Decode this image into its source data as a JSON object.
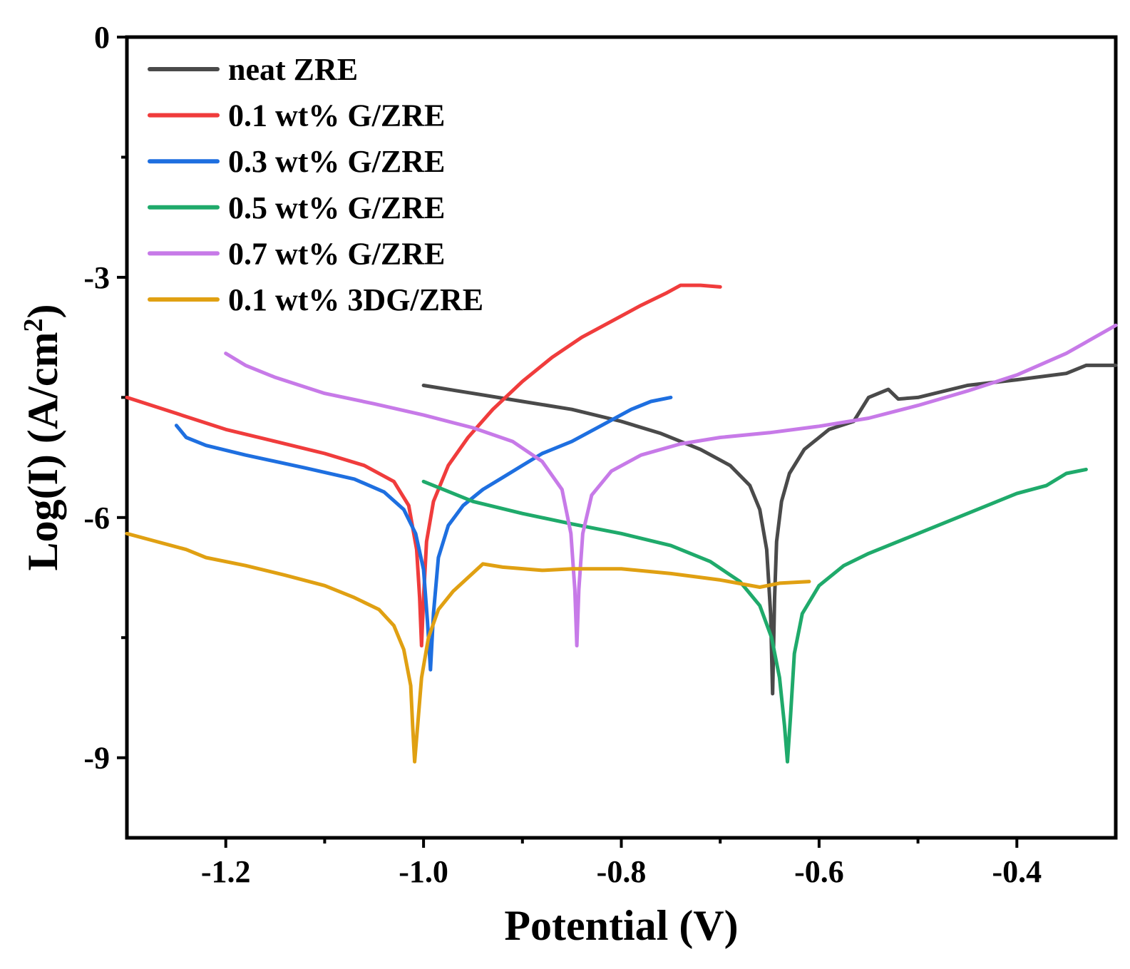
{
  "chart_data": {
    "type": "line",
    "title": "",
    "xlabel": "Potential (V)",
    "ylabel_main": "Log(I) (A/cm",
    "ylabel_sup": "2",
    "ylabel_close": ")",
    "xlim": [
      -1.3,
      -0.3
    ],
    "ylim": [
      -10,
      0
    ],
    "xticks": [
      {
        "value": -1.2,
        "label": "-1.2"
      },
      {
        "value": -1.0,
        "label": "-1.0"
      },
      {
        "value": -0.8,
        "label": "-0.8"
      },
      {
        "value": -0.6,
        "label": "-0.6"
      },
      {
        "value": -0.4,
        "label": "-0.4"
      }
    ],
    "xminor": [
      -1.1,
      -0.9,
      -0.7,
      -0.5,
      -0.3
    ],
    "yticks": [
      {
        "value": 0,
        "label": "0"
      },
      {
        "value": -3,
        "label": "-3"
      },
      {
        "value": -6,
        "label": "-6"
      },
      {
        "value": -9,
        "label": "-9"
      }
    ],
    "yminor": [
      -1.5,
      -4.5,
      -7.5
    ],
    "grid": false,
    "legend_position": "top-left",
    "series": [
      {
        "name": "neat ZRE",
        "color": "#4a4a4a",
        "points": [
          [
            -1.0,
            -4.35
          ],
          [
            -0.95,
            -4.45
          ],
          [
            -0.9,
            -4.55
          ],
          [
            -0.85,
            -4.65
          ],
          [
            -0.8,
            -4.8
          ],
          [
            -0.76,
            -4.95
          ],
          [
            -0.72,
            -5.15
          ],
          [
            -0.69,
            -5.35
          ],
          [
            -0.67,
            -5.6
          ],
          [
            -0.66,
            -5.9
          ],
          [
            -0.653,
            -6.4
          ],
          [
            -0.649,
            -7.2
          ],
          [
            -0.647,
            -8.2
          ],
          [
            -0.645,
            -7.0
          ],
          [
            -0.643,
            -6.3
          ],
          [
            -0.638,
            -5.8
          ],
          [
            -0.63,
            -5.45
          ],
          [
            -0.615,
            -5.15
          ],
          [
            -0.59,
            -4.9
          ],
          [
            -0.565,
            -4.8
          ],
          [
            -0.55,
            -4.5
          ],
          [
            -0.53,
            -4.4
          ],
          [
            -0.52,
            -4.52
          ],
          [
            -0.5,
            -4.5
          ],
          [
            -0.45,
            -4.35
          ],
          [
            -0.4,
            -4.28
          ],
          [
            -0.35,
            -4.2
          ],
          [
            -0.33,
            -4.1
          ],
          [
            -0.3,
            -4.1
          ]
        ]
      },
      {
        "name": "0.1 wt% G/ZRE",
        "color": "#f03c3c",
        "points": [
          [
            -1.3,
            -4.5
          ],
          [
            -1.25,
            -4.7
          ],
          [
            -1.2,
            -4.9
          ],
          [
            -1.15,
            -5.05
          ],
          [
            -1.1,
            -5.2
          ],
          [
            -1.06,
            -5.35
          ],
          [
            -1.03,
            -5.55
          ],
          [
            -1.015,
            -5.85
          ],
          [
            -1.007,
            -6.4
          ],
          [
            -1.004,
            -7.0
          ],
          [
            -1.002,
            -7.6
          ],
          [
            -1.0,
            -7.0
          ],
          [
            -0.997,
            -6.3
          ],
          [
            -0.99,
            -5.8
          ],
          [
            -0.975,
            -5.35
          ],
          [
            -0.955,
            -5.0
          ],
          [
            -0.93,
            -4.65
          ],
          [
            -0.9,
            -4.3
          ],
          [
            -0.87,
            -4.0
          ],
          [
            -0.84,
            -3.75
          ],
          [
            -0.81,
            -3.55
          ],
          [
            -0.78,
            -3.35
          ],
          [
            -0.755,
            -3.2
          ],
          [
            -0.74,
            -3.1
          ],
          [
            -0.72,
            -3.1
          ],
          [
            -0.7,
            -3.12
          ]
        ]
      },
      {
        "name": "0.3 wt% G/ZRE",
        "color": "#1e6fe0",
        "points": [
          [
            -1.25,
            -4.85
          ],
          [
            -1.24,
            -5.0
          ],
          [
            -1.22,
            -5.1
          ],
          [
            -1.18,
            -5.22
          ],
          [
            -1.12,
            -5.38
          ],
          [
            -1.07,
            -5.52
          ],
          [
            -1.04,
            -5.68
          ],
          [
            -1.02,
            -5.9
          ],
          [
            -1.008,
            -6.2
          ],
          [
            -1.0,
            -6.65
          ],
          [
            -0.996,
            -7.3
          ],
          [
            -0.993,
            -7.9
          ],
          [
            -0.99,
            -7.2
          ],
          [
            -0.985,
            -6.5
          ],
          [
            -0.975,
            -6.1
          ],
          [
            -0.96,
            -5.85
          ],
          [
            -0.94,
            -5.65
          ],
          [
            -0.92,
            -5.5
          ],
          [
            -0.9,
            -5.35
          ],
          [
            -0.88,
            -5.2
          ],
          [
            -0.85,
            -5.05
          ],
          [
            -0.82,
            -4.85
          ],
          [
            -0.79,
            -4.65
          ],
          [
            -0.77,
            -4.55
          ],
          [
            -0.75,
            -4.5
          ]
        ]
      },
      {
        "name": "0.5 wt% G/ZRE",
        "color": "#1faa6b",
        "points": [
          [
            -1.0,
            -5.55
          ],
          [
            -0.95,
            -5.8
          ],
          [
            -0.9,
            -5.95
          ],
          [
            -0.85,
            -6.08
          ],
          [
            -0.8,
            -6.2
          ],
          [
            -0.75,
            -6.35
          ],
          [
            -0.71,
            -6.55
          ],
          [
            -0.68,
            -6.8
          ],
          [
            -0.66,
            -7.1
          ],
          [
            -0.648,
            -7.5
          ],
          [
            -0.64,
            -8.0
          ],
          [
            -0.635,
            -8.6
          ],
          [
            -0.632,
            -9.05
          ],
          [
            -0.629,
            -8.5
          ],
          [
            -0.625,
            -7.7
          ],
          [
            -0.617,
            -7.2
          ],
          [
            -0.6,
            -6.85
          ],
          [
            -0.575,
            -6.6
          ],
          [
            -0.55,
            -6.45
          ],
          [
            -0.5,
            -6.2
          ],
          [
            -0.45,
            -5.95
          ],
          [
            -0.4,
            -5.7
          ],
          [
            -0.37,
            -5.6
          ],
          [
            -0.35,
            -5.45
          ],
          [
            -0.33,
            -5.4
          ]
        ]
      },
      {
        "name": "0.7 wt% G/ZRE",
        "color": "#c77ae8",
        "points": [
          [
            -1.2,
            -3.95
          ],
          [
            -1.18,
            -4.1
          ],
          [
            -1.15,
            -4.25
          ],
          [
            -1.1,
            -4.45
          ],
          [
            -1.05,
            -4.58
          ],
          [
            -1.0,
            -4.72
          ],
          [
            -0.95,
            -4.88
          ],
          [
            -0.91,
            -5.05
          ],
          [
            -0.88,
            -5.3
          ],
          [
            -0.86,
            -5.65
          ],
          [
            -0.851,
            -6.2
          ],
          [
            -0.847,
            -6.9
          ],
          [
            -0.845,
            -7.6
          ],
          [
            -0.843,
            -6.9
          ],
          [
            -0.839,
            -6.2
          ],
          [
            -0.83,
            -5.72
          ],
          [
            -0.81,
            -5.42
          ],
          [
            -0.78,
            -5.22
          ],
          [
            -0.74,
            -5.08
          ],
          [
            -0.7,
            -5.0
          ],
          [
            -0.65,
            -4.94
          ],
          [
            -0.6,
            -4.86
          ],
          [
            -0.55,
            -4.76
          ],
          [
            -0.5,
            -4.6
          ],
          [
            -0.45,
            -4.42
          ],
          [
            -0.4,
            -4.22
          ],
          [
            -0.35,
            -3.95
          ],
          [
            -0.3,
            -3.6
          ]
        ]
      },
      {
        "name": "0.1 wt% 3DG/ZRE",
        "color": "#e0a012",
        "points": [
          [
            -1.3,
            -6.2
          ],
          [
            -1.27,
            -6.3
          ],
          [
            -1.24,
            -6.4
          ],
          [
            -1.22,
            -6.5
          ],
          [
            -1.18,
            -6.6
          ],
          [
            -1.14,
            -6.72
          ],
          [
            -1.1,
            -6.85
          ],
          [
            -1.07,
            -7.0
          ],
          [
            -1.045,
            -7.15
          ],
          [
            -1.03,
            -7.35
          ],
          [
            -1.02,
            -7.65
          ],
          [
            -1.013,
            -8.1
          ],
          [
            -1.011,
            -8.6
          ],
          [
            -1.009,
            -9.05
          ],
          [
            -1.006,
            -8.6
          ],
          [
            -1.002,
            -8.0
          ],
          [
            -0.995,
            -7.5
          ],
          [
            -0.985,
            -7.15
          ],
          [
            -0.97,
            -6.92
          ],
          [
            -0.955,
            -6.75
          ],
          [
            -0.94,
            -6.58
          ],
          [
            -0.92,
            -6.62
          ],
          [
            -0.88,
            -6.66
          ],
          [
            -0.85,
            -6.64
          ],
          [
            -0.8,
            -6.64
          ],
          [
            -0.75,
            -6.7
          ],
          [
            -0.7,
            -6.78
          ],
          [
            -0.66,
            -6.87
          ],
          [
            -0.64,
            -6.82
          ],
          [
            -0.61,
            -6.8
          ]
        ]
      }
    ]
  }
}
